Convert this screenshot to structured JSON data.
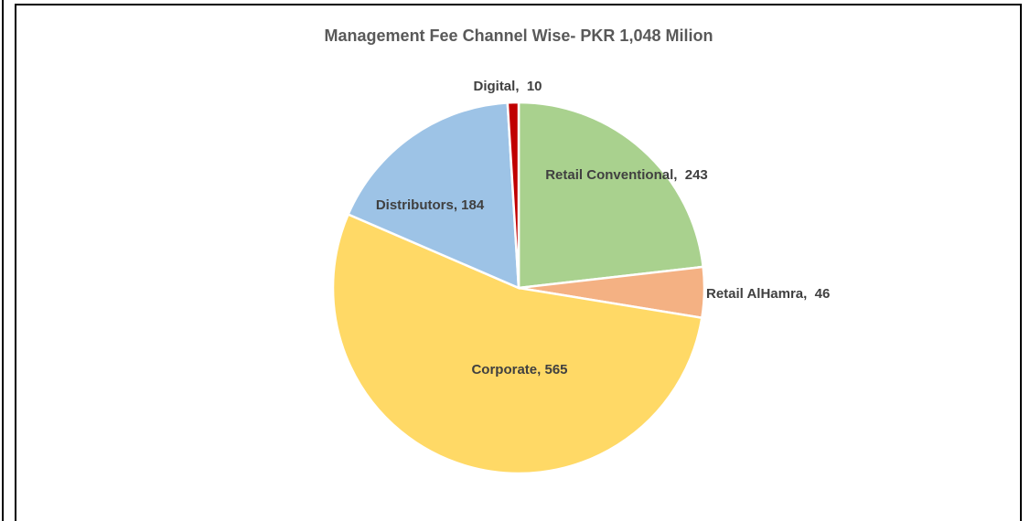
{
  "chart_data": {
    "type": "pie",
    "title": "Management Fee Channel Wise- PKR 1,048 Milion",
    "categories": [
      "Retail Conventional",
      "Retail AlHamra",
      "Corporate",
      "Distributors",
      "Digital"
    ],
    "values": [
      243,
      46,
      565,
      184,
      10
    ],
    "value_labels": [
      "Retail Conventional,  243",
      "Retail AlHamra,  46",
      "Corporate, 565",
      "Distributors, 184",
      "Digital,  10"
    ],
    "colors": [
      "#a9d18e",
      "#f4b183",
      "#ffd966",
      "#9dc3e6",
      "#c00000"
    ]
  }
}
